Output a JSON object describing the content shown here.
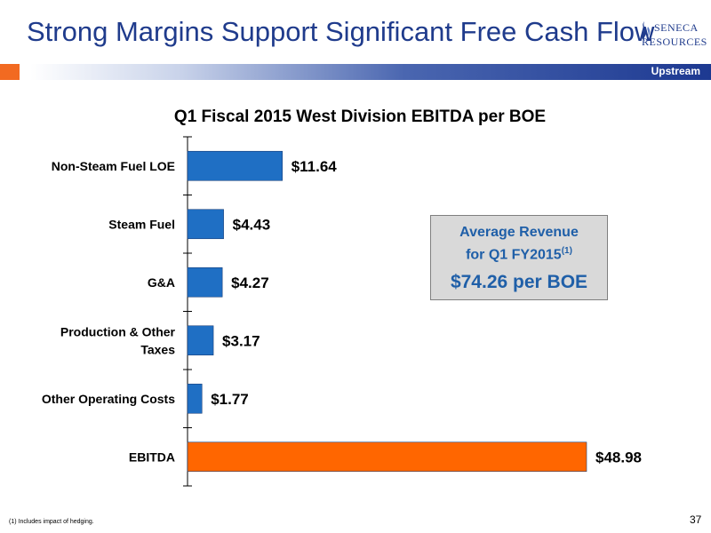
{
  "slide": {
    "title": "Strong Margins Support Significant Free Cash Flow",
    "section_label": "Upstream",
    "logo_line1": "SENECA",
    "logo_line2": "RESOURCES",
    "footnote": "(1)    Includes impact of hedging.",
    "page_number": "37"
  },
  "callout": {
    "line1": "Average Revenue",
    "line2": "for Q1 FY2015",
    "superscript": "(1)",
    "value": "$74.26 per BOE"
  },
  "colors": {
    "title": "#1f3b8c",
    "bar_blue": "#1f6fc4",
    "bar_orange": "#ff6600",
    "accent_orange": "#f26a21",
    "callout_text": "#1f5fa8"
  },
  "chart_data": {
    "type": "bar",
    "orientation": "horizontal",
    "title": "Q1 Fiscal 2015 West Division EBITDA per BOE",
    "categories": [
      [
        "Non-Steam Fuel LOE"
      ],
      [
        "Steam Fuel"
      ],
      [
        "G&A"
      ],
      [
        "Production & Other",
        "Taxes"
      ],
      [
        "Other Operating Costs"
      ],
      [
        "EBITDA"
      ]
    ],
    "values": [
      11.64,
      4.43,
      4.27,
      3.17,
      1.77,
      48.98
    ],
    "value_labels": [
      "$11.64",
      "$4.43",
      "$4.27",
      "$3.17",
      "$1.77",
      "$48.98"
    ],
    "bar_colors": [
      "#1f6fc4",
      "#1f6fc4",
      "#1f6fc4",
      "#1f6fc4",
      "#1f6fc4",
      "#ff6600"
    ],
    "xlim": [
      0,
      48.98
    ],
    "grid": false
  }
}
